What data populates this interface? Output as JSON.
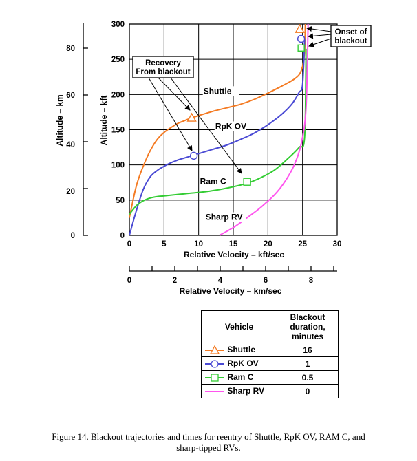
{
  "chart_data": {
    "type": "line",
    "xlabel_top": "Relative Velocity – kft/sec",
    "xlabel_bottom": "Relative Velocity – km/sec",
    "ylabel_kft": "Altitude – kft",
    "ylabel_km": "Altitude – km",
    "xlim": [
      0,
      30
    ],
    "ylim": [
      0,
      300
    ],
    "x_ticks": [
      "0",
      "5",
      "10",
      "15",
      "20",
      "25",
      "30"
    ],
    "y_ticks_kft": [
      "0",
      "50",
      "100",
      "150",
      "200",
      "250",
      "300"
    ],
    "y_ticks_km": [
      "0",
      "20",
      "40",
      "60",
      "80"
    ],
    "x_ticks_km": [
      "0",
      "2",
      "4",
      "6",
      "8"
    ],
    "grid": true,
    "series": [
      {
        "name": "Shuttle",
        "color": "#f47a22",
        "marker": "triangle",
        "x": [
          0,
          1,
          2,
          3,
          4,
          5,
          6,
          7,
          8,
          9,
          10,
          12,
          14,
          16,
          18,
          20,
          22,
          23.5,
          24.5,
          25,
          25.3,
          25.4
        ],
        "y": [
          25,
          70,
          98,
          120,
          136,
          146,
          153,
          159,
          163,
          167,
          170,
          176,
          181,
          186,
          193,
          202,
          212,
          220,
          228,
          240,
          262,
          300
        ],
        "recovery_point": [
          9,
          167
        ]
      },
      {
        "name": "RpK OV",
        "color": "#4a4ad4",
        "marker": "circle",
        "x": [
          0,
          1,
          2,
          3,
          4,
          5,
          6,
          7,
          8,
          9,
          10,
          12,
          14,
          16,
          18,
          20,
          22,
          23.5,
          24.5,
          25,
          25.3
        ],
        "y": [
          0,
          35,
          65,
          83,
          92,
          98,
          103,
          107,
          110,
          113,
          116,
          122,
          128,
          136,
          145,
          157,
          172,
          187,
          203,
          214,
          278
        ],
        "recovery_point": [
          9.3,
          113
        ]
      },
      {
        "name": "Ram C",
        "color": "#33cc33",
        "marker": "square",
        "x": [
          0,
          1,
          2,
          3,
          4,
          5,
          7,
          9,
          11,
          13,
          15,
          17,
          19,
          21,
          23,
          24.5,
          25.3,
          25.5
        ],
        "y": [
          30,
          42,
          49,
          53,
          55,
          56,
          58,
          60,
          62,
          65,
          69,
          74,
          82,
          93,
          110,
          125,
          140,
          265
        ],
        "recovery_point": [
          17,
          76
        ]
      },
      {
        "name": "Sharp RV",
        "color": "#ff55ee",
        "marker": "none",
        "x": [
          13,
          15,
          17,
          19,
          21,
          22.5,
          23.8,
          24.8,
          25.5,
          25.8
        ],
        "y": [
          0,
          11,
          25,
          40,
          58,
          77,
          100,
          130,
          180,
          300
        ]
      }
    ],
    "series_labels": [
      {
        "text": "Shuttle",
        "at": [
          10.7,
          201
        ]
      },
      {
        "text": "RpK OV",
        "at": [
          12.4,
          151
        ]
      },
      {
        "text": "Ram C",
        "at": [
          10.2,
          73
        ]
      },
      {
        "text": "Sharp RV",
        "at": [
          11,
          22
        ]
      }
    ],
    "annotations": {
      "recovery_line1": "Recovery",
      "recovery_line2": "From blackout",
      "onset_line1": "Onset of",
      "onset_line2": "blackout"
    }
  },
  "legend_table": {
    "header_vehicle": "Vehicle",
    "header_duration_1": "Blackout",
    "header_duration_2": "duration,",
    "header_duration_3": "minutes",
    "rows": [
      {
        "vehicle": "Shuttle",
        "duration": "16"
      },
      {
        "vehicle": "RpK OV",
        "duration": "1"
      },
      {
        "vehicle": "Ram C",
        "duration": "0.5"
      },
      {
        "vehicle": "Sharp RV",
        "duration": "0"
      }
    ]
  },
  "caption_line1": "Figure 14.  Blackout trajectories and times for reentry of Shuttle, RpK OV, RAM C, and",
  "caption_line2": "sharp-tipped RVs."
}
